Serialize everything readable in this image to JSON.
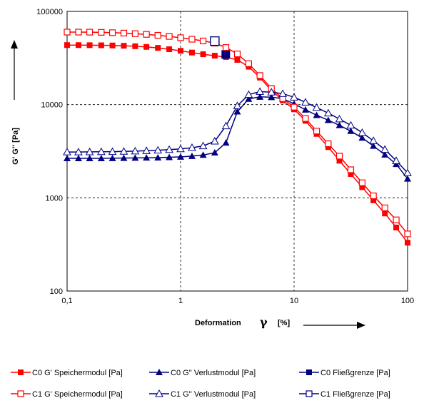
{
  "chart_data": {
    "type": "line",
    "xlabel": "Deformation",
    "xlabel_symbol": "γ",
    "xlabel_unit": "[%]",
    "ylabel": "G' G'' [Pa]",
    "x_scale": "log",
    "y_scale": "log",
    "xlim": [
      0.1,
      100
    ],
    "ylim": [
      100,
      100000
    ],
    "x_ticks": [
      "0,1",
      "1",
      "10",
      "100"
    ],
    "y_ticks": [
      "100",
      "1000",
      "10000",
      "100000"
    ],
    "grid": "dashed major gridlines",
    "legend_position": "bottom",
    "colors": {
      "red": "#ff0000",
      "blue": "#000080",
      "grid": "#000000"
    },
    "series": [
      {
        "name": "C0 G' Speichermodul [Pa]",
        "color": "#ff0000",
        "marker": "filled-square",
        "x": [
          0.1,
          0.126,
          0.158,
          0.2,
          0.251,
          0.316,
          0.398,
          0.5,
          0.631,
          0.794,
          1,
          1.26,
          1.58,
          2,
          2.51,
          3.16,
          3.98,
          5,
          6.31,
          7.94,
          10,
          12.6,
          15.8,
          20,
          25.1,
          31.6,
          39.8,
          50,
          63.1,
          79.4,
          100
        ],
        "y": [
          43500,
          43500,
          43400,
          43300,
          43100,
          42800,
          42300,
          41600,
          40600,
          39300,
          37800,
          36200,
          34700,
          33500,
          32400,
          30200,
          25500,
          19500,
          14200,
          11100,
          8900,
          6700,
          4850,
          3500,
          2500,
          1800,
          1300,
          940,
          680,
          480,
          330
        ]
      },
      {
        "name": "C0 G'' Verlustmodul [Pa]",
        "color": "#000080",
        "marker": "filled-triangle",
        "x": [
          0.1,
          0.126,
          0.158,
          0.2,
          0.251,
          0.316,
          0.398,
          0.5,
          0.631,
          0.794,
          1,
          1.26,
          1.58,
          2,
          2.51,
          3.16,
          3.98,
          5,
          6.31,
          7.94,
          10,
          12.6,
          15.8,
          20,
          25.1,
          31.6,
          39.8,
          50,
          63.1,
          79.4,
          100
        ],
        "y": [
          2650,
          2650,
          2650,
          2650,
          2660,
          2670,
          2680,
          2690,
          2700,
          2720,
          2750,
          2800,
          2880,
          3050,
          3900,
          8400,
          11500,
          12100,
          12000,
          11600,
          10200,
          8800,
          7700,
          6800,
          6000,
          5200,
          4400,
          3600,
          2900,
          2300,
          1600
        ]
      },
      {
        "name": "C0 Fließgrenze [Pa]",
        "color": "#000080",
        "marker": "filled-square-large",
        "x": [
          2.5
        ],
        "y": [
          34500
        ]
      },
      {
        "name": "C1 G' Speichermodul [Pa]",
        "color": "#ff0000",
        "marker": "open-square",
        "x": [
          0.1,
          0.126,
          0.158,
          0.2,
          0.251,
          0.316,
          0.398,
          0.5,
          0.631,
          0.794,
          1,
          1.26,
          1.58,
          2,
          2.51,
          3.16,
          3.98,
          5,
          6.31,
          7.94,
          10,
          12.6,
          15.8,
          20,
          25.1,
          31.6,
          39.8,
          50,
          63.1,
          79.4,
          100
        ],
        "y": [
          60000,
          60000,
          59900,
          59600,
          59100,
          58500,
          57700,
          56700,
          55400,
          53900,
          52200,
          50300,
          48200,
          45700,
          41000,
          35000,
          27500,
          20500,
          14900,
          11600,
          9400,
          7100,
          5200,
          3800,
          2800,
          2000,
          1450,
          1050,
          780,
          580,
          410
        ]
      },
      {
        "name": "C1 G'' Verlustmodul [Pa]",
        "color": "#000080",
        "marker": "open-triangle",
        "x": [
          0.1,
          0.126,
          0.158,
          0.2,
          0.251,
          0.316,
          0.398,
          0.5,
          0.631,
          0.794,
          1,
          1.26,
          1.58,
          2,
          2.51,
          3.16,
          3.98,
          5,
          6.31,
          7.94,
          10,
          12.6,
          15.8,
          20,
          25.1,
          31.6,
          39.8,
          50,
          63.1,
          79.4,
          100
        ],
        "y": [
          3100,
          3100,
          3110,
          3120,
          3130,
          3150,
          3170,
          3200,
          3240,
          3290,
          3350,
          3450,
          3600,
          4050,
          5900,
          9700,
          12800,
          13800,
          13600,
          13100,
          12000,
          10600,
          9300,
          8100,
          7000,
          6000,
          5000,
          4100,
          3300,
          2500,
          1850
        ]
      },
      {
        "name": "C1 Fließgrenze [Pa]",
        "color": "#000080",
        "marker": "open-square-large",
        "x": [
          2
        ],
        "y": [
          48000
        ]
      }
    ]
  }
}
